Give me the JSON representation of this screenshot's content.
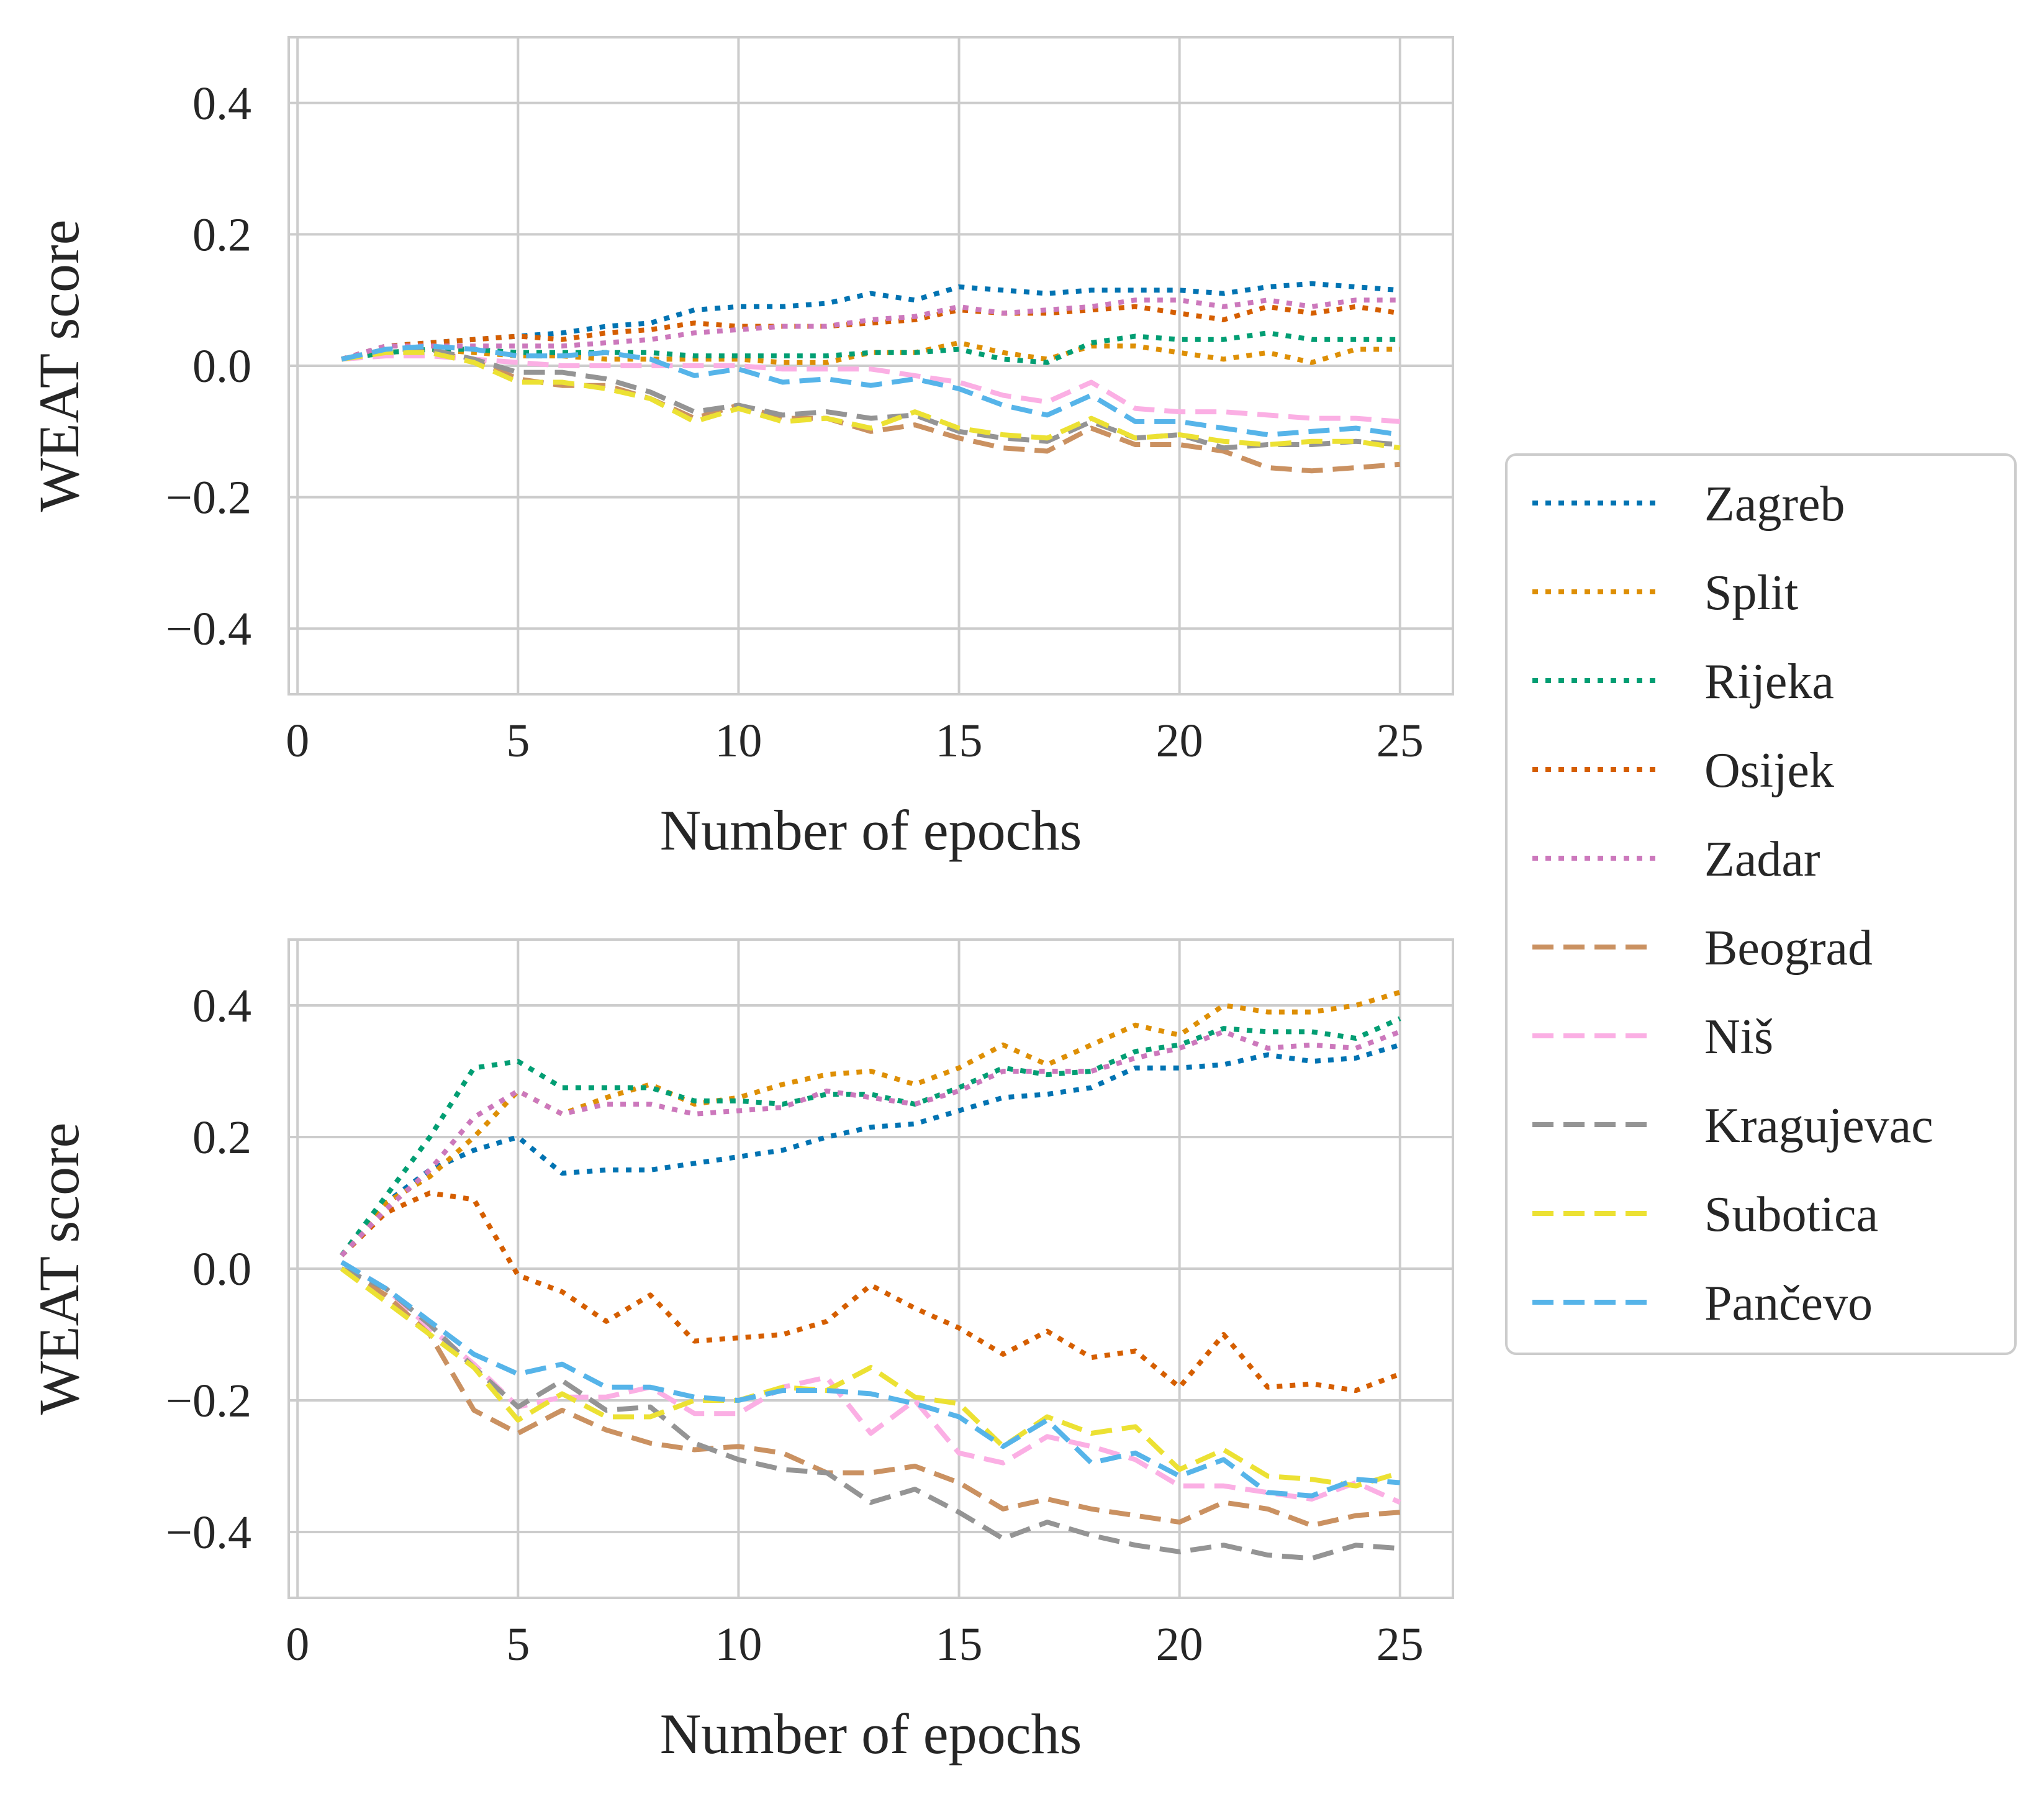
{
  "chart_data": [
    {
      "type": "line",
      "title": "",
      "xlabel": "Number of epochs",
      "ylabel": "WEAT score",
      "xlim": [
        -0.2,
        26.2
      ],
      "ylim": [
        -0.5,
        0.5
      ],
      "xticks": [
        0,
        5,
        10,
        15,
        20,
        25
      ],
      "xtick_labels": [
        "0",
        "5",
        "10",
        "15",
        "20",
        "25"
      ],
      "yticks": [
        0.4,
        0.2,
        0.0,
        -0.2,
        -0.4
      ],
      "ytick_labels": [
        "0.4",
        "0.2",
        "0.0",
        "−0.2",
        "−0.4"
      ],
      "grid": true,
      "x": [
        1,
        2,
        3,
        4,
        5,
        6,
        7,
        8,
        9,
        10,
        11,
        12,
        13,
        14,
        15,
        16,
        17,
        18,
        19,
        20,
        21,
        22,
        23,
        24,
        25
      ],
      "series": [
        {
          "name": "Zagreb",
          "values": [
            0.01,
            0.03,
            0.035,
            0.04,
            0.045,
            0.05,
            0.06,
            0.065,
            0.085,
            0.09,
            0.09,
            0.095,
            0.11,
            0.1,
            0.12,
            0.115,
            0.11,
            0.115,
            0.115,
            0.115,
            0.11,
            0.12,
            0.125,
            0.12,
            0.115
          ]
        },
        {
          "name": "Split",
          "values": [
            0.01,
            0.02,
            0.025,
            0.02,
            0.015,
            0.015,
            0.01,
            0.01,
            0.01,
            0.01,
            0.005,
            0.005,
            0.02,
            0.02,
            0.035,
            0.02,
            0.01,
            0.03,
            0.03,
            0.02,
            0.01,
            0.02,
            0.005,
            0.025,
            0.025
          ]
        },
        {
          "name": "Rijeka",
          "values": [
            0.01,
            0.02,
            0.025,
            0.025,
            0.02,
            0.02,
            0.02,
            0.02,
            0.015,
            0.015,
            0.015,
            0.015,
            0.02,
            0.02,
            0.025,
            0.01,
            0.005,
            0.035,
            0.045,
            0.04,
            0.04,
            0.05,
            0.04,
            0.04,
            0.04
          ]
        },
        {
          "name": "Osijek",
          "values": [
            0.01,
            0.03,
            0.035,
            0.04,
            0.045,
            0.04,
            0.05,
            0.055,
            0.065,
            0.06,
            0.06,
            0.06,
            0.065,
            0.07,
            0.085,
            0.08,
            0.08,
            0.085,
            0.09,
            0.08,
            0.07,
            0.09,
            0.08,
            0.09,
            0.08
          ]
        },
        {
          "name": "Zadar",
          "values": [
            0.01,
            0.03,
            0.03,
            0.03,
            0.03,
            0.03,
            0.035,
            0.04,
            0.05,
            0.055,
            0.06,
            0.06,
            0.07,
            0.075,
            0.09,
            0.08,
            0.085,
            0.09,
            0.1,
            0.1,
            0.09,
            0.1,
            0.09,
            0.1,
            0.1
          ]
        },
        {
          "name": "Beograd",
          "values": [
            0.01,
            0.02,
            0.02,
            0.01,
            -0.02,
            -0.03,
            -0.03,
            -0.05,
            -0.08,
            -0.06,
            -0.08,
            -0.08,
            -0.1,
            -0.09,
            -0.11,
            -0.125,
            -0.13,
            -0.095,
            -0.12,
            -0.12,
            -0.13,
            -0.155,
            -0.16,
            -0.155,
            -0.15
          ]
        },
        {
          "name": "Niš",
          "values": [
            0.01,
            0.015,
            0.015,
            0.01,
            0.005,
            0.0,
            0.0,
            0.0,
            0.0,
            0.0,
            -0.005,
            -0.005,
            -0.005,
            -0.015,
            -0.025,
            -0.045,
            -0.055,
            -0.025,
            -0.065,
            -0.07,
            -0.07,
            -0.075,
            -0.08,
            -0.08,
            -0.085
          ]
        },
        {
          "name": "Kragujevac",
          "values": [
            0.01,
            0.025,
            0.025,
            0.01,
            -0.01,
            -0.01,
            -0.02,
            -0.04,
            -0.07,
            -0.06,
            -0.075,
            -0.07,
            -0.08,
            -0.075,
            -0.1,
            -0.11,
            -0.115,
            -0.085,
            -0.11,
            -0.105,
            -0.125,
            -0.12,
            -0.12,
            -0.115,
            -0.12
          ]
        },
        {
          "name": "Subotica",
          "values": [
            0.01,
            0.02,
            0.02,
            0.005,
            -0.025,
            -0.025,
            -0.035,
            -0.05,
            -0.085,
            -0.065,
            -0.085,
            -0.08,
            -0.095,
            -0.07,
            -0.095,
            -0.105,
            -0.11,
            -0.08,
            -0.11,
            -0.105,
            -0.115,
            -0.12,
            -0.115,
            -0.115,
            -0.125
          ]
        },
        {
          "name": "Pančevo",
          "values": [
            0.01,
            0.025,
            0.03,
            0.025,
            0.015,
            0.015,
            0.02,
            0.01,
            -0.015,
            -0.005,
            -0.025,
            -0.02,
            -0.03,
            -0.02,
            -0.035,
            -0.06,
            -0.075,
            -0.045,
            -0.085,
            -0.085,
            -0.095,
            -0.105,
            -0.1,
            -0.095,
            -0.105
          ]
        }
      ]
    },
    {
      "type": "line",
      "title": "",
      "xlabel": "Number of epochs",
      "ylabel": "WEAT score",
      "xlim": [
        -0.2,
        26.2
      ],
      "ylim": [
        -0.5,
        0.5
      ],
      "xticks": [
        0,
        5,
        10,
        15,
        20,
        25
      ],
      "xtick_labels": [
        "0",
        "5",
        "10",
        "15",
        "20",
        "25"
      ],
      "yticks": [
        0.4,
        0.2,
        0.0,
        -0.2,
        -0.4
      ],
      "ytick_labels": [
        "0.4",
        "0.2",
        "0.0",
        "−0.2",
        "−0.4"
      ],
      "grid": true,
      "x": [
        1,
        2,
        3,
        4,
        5,
        6,
        7,
        8,
        9,
        10,
        11,
        12,
        13,
        14,
        15,
        16,
        17,
        18,
        19,
        20,
        21,
        22,
        23,
        24,
        25
      ],
      "series": [
        {
          "name": "Zagreb",
          "values": [
            0.02,
            0.1,
            0.15,
            0.18,
            0.2,
            0.145,
            0.15,
            0.15,
            0.16,
            0.17,
            0.18,
            0.2,
            0.215,
            0.22,
            0.24,
            0.26,
            0.265,
            0.275,
            0.305,
            0.305,
            0.31,
            0.325,
            0.315,
            0.32,
            0.34
          ]
        },
        {
          "name": "Split",
          "values": [
            0.02,
            0.1,
            0.14,
            0.2,
            0.27,
            0.235,
            0.26,
            0.28,
            0.25,
            0.26,
            0.28,
            0.295,
            0.3,
            0.28,
            0.305,
            0.34,
            0.31,
            0.34,
            0.37,
            0.355,
            0.4,
            0.39,
            0.39,
            0.4,
            0.42
          ]
        },
        {
          "name": "Rijeka",
          "values": [
            0.02,
            0.11,
            0.2,
            0.305,
            0.315,
            0.275,
            0.275,
            0.275,
            0.255,
            0.255,
            0.25,
            0.265,
            0.265,
            0.25,
            0.275,
            0.305,
            0.295,
            0.3,
            0.33,
            0.34,
            0.365,
            0.36,
            0.36,
            0.35,
            0.38
          ]
        },
        {
          "name": "Osijek",
          "values": [
            0.02,
            0.085,
            0.115,
            0.105,
            -0.01,
            -0.035,
            -0.08,
            -0.04,
            -0.11,
            -0.105,
            -0.1,
            -0.08,
            -0.025,
            -0.06,
            -0.09,
            -0.13,
            -0.095,
            -0.135,
            -0.125,
            -0.18,
            -0.1,
            -0.18,
            -0.175,
            -0.185,
            -0.16
          ]
        },
        {
          "name": "Zadar",
          "values": [
            0.02,
            0.09,
            0.15,
            0.23,
            0.27,
            0.235,
            0.25,
            0.25,
            0.235,
            0.24,
            0.245,
            0.27,
            0.26,
            0.25,
            0.27,
            0.3,
            0.3,
            0.3,
            0.32,
            0.335,
            0.36,
            0.335,
            0.34,
            0.335,
            0.36
          ]
        },
        {
          "name": "Beograd",
          "values": [
            0.0,
            -0.04,
            -0.1,
            -0.215,
            -0.25,
            -0.215,
            -0.245,
            -0.265,
            -0.275,
            -0.27,
            -0.28,
            -0.31,
            -0.31,
            -0.3,
            -0.325,
            -0.365,
            -0.35,
            -0.365,
            -0.375,
            -0.385,
            -0.355,
            -0.365,
            -0.39,
            -0.375,
            -0.37
          ]
        },
        {
          "name": "Niš",
          "values": [
            0.01,
            -0.03,
            -0.09,
            -0.145,
            -0.21,
            -0.195,
            -0.195,
            -0.18,
            -0.22,
            -0.22,
            -0.18,
            -0.165,
            -0.25,
            -0.2,
            -0.28,
            -0.295,
            -0.255,
            -0.27,
            -0.29,
            -0.33,
            -0.33,
            -0.34,
            -0.35,
            -0.325,
            -0.355
          ]
        },
        {
          "name": "Kragujevac",
          "values": [
            0.0,
            -0.03,
            -0.085,
            -0.15,
            -0.21,
            -0.17,
            -0.215,
            -0.21,
            -0.265,
            -0.29,
            -0.305,
            -0.31,
            -0.355,
            -0.335,
            -0.37,
            -0.41,
            -0.385,
            -0.405,
            -0.42,
            -0.43,
            -0.42,
            -0.435,
            -0.44,
            -0.42,
            -0.425
          ]
        },
        {
          "name": "Subotica",
          "values": [
            0.0,
            -0.05,
            -0.1,
            -0.15,
            -0.23,
            -0.19,
            -0.225,
            -0.225,
            -0.2,
            -0.2,
            -0.18,
            -0.185,
            -0.15,
            -0.195,
            -0.205,
            -0.27,
            -0.225,
            -0.25,
            -0.24,
            -0.305,
            -0.275,
            -0.315,
            -0.32,
            -0.33,
            -0.31
          ]
        },
        {
          "name": "Pančevo",
          "values": [
            0.01,
            -0.03,
            -0.08,
            -0.13,
            -0.16,
            -0.145,
            -0.18,
            -0.18,
            -0.195,
            -0.2,
            -0.185,
            -0.185,
            -0.19,
            -0.205,
            -0.225,
            -0.27,
            -0.23,
            -0.295,
            -0.28,
            -0.315,
            -0.29,
            -0.34,
            -0.345,
            -0.32,
            -0.325
          ]
        }
      ]
    }
  ],
  "legend": {
    "position": "center-right",
    "entries": [
      {
        "name": "Zagreb",
        "color": "#0173b2",
        "dash": "dotted"
      },
      {
        "name": "Split",
        "color": "#de8f05",
        "dash": "dotted"
      },
      {
        "name": "Rijeka",
        "color": "#029e73",
        "dash": "dotted"
      },
      {
        "name": "Osijek",
        "color": "#d55e00",
        "dash": "dotted"
      },
      {
        "name": "Zadar",
        "color": "#cc78bc",
        "dash": "dotted"
      },
      {
        "name": "Beograd",
        "color": "#ca9161",
        "dash": "dashed"
      },
      {
        "name": "Niš",
        "color": "#fbafe4",
        "dash": "dashed"
      },
      {
        "name": "Kragujevac",
        "color": "#949494",
        "dash": "dashed"
      },
      {
        "name": "Subotica",
        "color": "#ece133",
        "dash": "dashed"
      },
      {
        "name": "Pančevo",
        "color": "#56b4e9",
        "dash": "dashed"
      }
    ]
  }
}
